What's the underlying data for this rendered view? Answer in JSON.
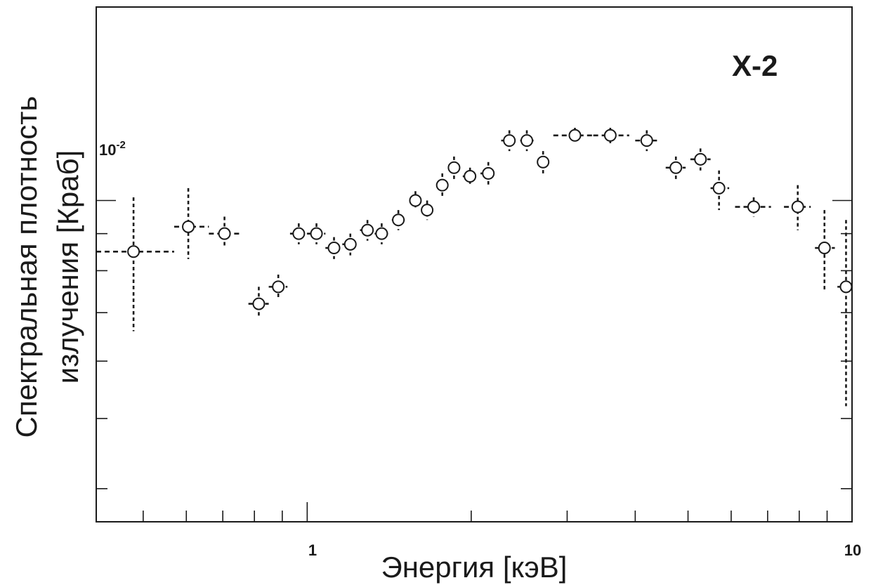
{
  "chart_data": {
    "type": "scatter",
    "title": "",
    "panel_label": "X-2",
    "xlabel": "Энергия [кэВ]",
    "ylabel_line1": "Спектральная плотность",
    "ylabel_line2": "излучения [Краб]",
    "xscale": "log",
    "yscale": "log",
    "xlim": [
      0.41,
      10.0
    ],
    "ylim": [
      0.0036,
      0.0185
    ],
    "x_ticks": [
      {
        "value": 1,
        "label": "1"
      },
      {
        "value": 10,
        "label": "10"
      }
    ],
    "y_ticks": [
      {
        "value": 0.01,
        "label_base": "10",
        "label_exp": "-2"
      }
    ],
    "grid": false,
    "legend": "none",
    "marker_color": "#1a1a1a",
    "series": [
      {
        "points": [
          {
            "x": 0.48,
            "x_lo": 0.41,
            "x_hi": 0.57,
            "y": 0.0085,
            "y_lo": 0.0066,
            "y_hi": 0.0101
          },
          {
            "x": 0.605,
            "x_lo": 0.57,
            "x_hi": 0.66,
            "y": 0.0092,
            "y_lo": 0.0083,
            "y_hi": 0.0104
          },
          {
            "x": 0.705,
            "x_lo": 0.66,
            "x_hi": 0.76,
            "y": 0.009,
            "y_lo": 0.0086,
            "y_hi": 0.0095
          },
          {
            "x": 0.815,
            "x_lo": 0.78,
            "x_hi": 0.85,
            "y": 0.0072,
            "y_lo": 0.0069,
            "y_hi": 0.0076
          },
          {
            "x": 0.885,
            "x_lo": 0.85,
            "x_hi": 0.92,
            "y": 0.0076,
            "y_lo": 0.0073,
            "y_hi": 0.0079
          },
          {
            "x": 0.965,
            "x_lo": 0.93,
            "x_hi": 1.0,
            "y": 0.009,
            "y_lo": 0.0087,
            "y_hi": 0.0093
          },
          {
            "x": 1.04,
            "x_lo": 1.0,
            "x_hi": 1.08,
            "y": 0.009,
            "y_lo": 0.0087,
            "y_hi": 0.0093
          },
          {
            "x": 1.12,
            "x_lo": 1.08,
            "x_hi": 1.16,
            "y": 0.0086,
            "y_lo": 0.0083,
            "y_hi": 0.0089
          },
          {
            "x": 1.2,
            "x_lo": 1.16,
            "x_hi": 1.24,
            "y": 0.0087,
            "y_lo": 0.0084,
            "y_hi": 0.009
          },
          {
            "x": 1.29,
            "x_lo": 1.25,
            "x_hi": 1.34,
            "y": 0.0091,
            "y_lo": 0.0088,
            "y_hi": 0.0094
          },
          {
            "x": 1.37,
            "x_lo": 1.33,
            "x_hi": 1.41,
            "y": 0.009,
            "y_lo": 0.0087,
            "y_hi": 0.0093
          },
          {
            "x": 1.47,
            "x_lo": 1.43,
            "x_hi": 1.51,
            "y": 0.0094,
            "y_lo": 0.0091,
            "y_hi": 0.0097
          },
          {
            "x": 1.58,
            "x_lo": 1.54,
            "x_hi": 1.62,
            "y": 0.01,
            "y_lo": 0.0097,
            "y_hi": 0.0103
          },
          {
            "x": 1.66,
            "x_lo": 1.62,
            "x_hi": 1.7,
            "y": 0.0097,
            "y_lo": 0.0094,
            "y_hi": 0.01
          },
          {
            "x": 1.77,
            "x_lo": 1.73,
            "x_hi": 1.81,
            "y": 0.0105,
            "y_lo": 0.0101,
            "y_hi": 0.0109
          },
          {
            "x": 1.86,
            "x_lo": 1.82,
            "x_hi": 1.9,
            "y": 0.0111,
            "y_lo": 0.0107,
            "y_hi": 0.0115
          },
          {
            "x": 1.99,
            "x_lo": 1.93,
            "x_hi": 2.06,
            "y": 0.0108,
            "y_lo": 0.0105,
            "y_hi": 0.0111
          },
          {
            "x": 2.15,
            "x_lo": 2.08,
            "x_hi": 2.23,
            "y": 0.0109,
            "y_lo": 0.0105,
            "y_hi": 0.0113
          },
          {
            "x": 2.35,
            "x_lo": 2.27,
            "x_hi": 2.43,
            "y": 0.0121,
            "y_lo": 0.0117,
            "y_hi": 0.0125
          },
          {
            "x": 2.53,
            "x_lo": 2.46,
            "x_hi": 2.61,
            "y": 0.0121,
            "y_lo": 0.0117,
            "y_hi": 0.0125
          },
          {
            "x": 2.71,
            "x_lo": 2.65,
            "x_hi": 2.78,
            "y": 0.0113,
            "y_lo": 0.0109,
            "y_hi": 0.0117
          },
          {
            "x": 3.1,
            "x_lo": 2.83,
            "x_hi": 3.35,
            "y": 0.0123,
            "y_lo": 0.0121,
            "y_hi": 0.0126
          },
          {
            "x": 3.6,
            "x_lo": 3.35,
            "x_hi": 3.9,
            "y": 0.0123,
            "y_lo": 0.012,
            "y_hi": 0.0126
          },
          {
            "x": 4.2,
            "x_lo": 4.0,
            "x_hi": 4.4,
            "y": 0.0121,
            "y_lo": 0.0117,
            "y_hi": 0.0125
          },
          {
            "x": 4.75,
            "x_lo": 4.55,
            "x_hi": 4.95,
            "y": 0.0111,
            "y_lo": 0.0107,
            "y_hi": 0.0115
          },
          {
            "x": 5.27,
            "x_lo": 5.05,
            "x_hi": 5.5,
            "y": 0.0114,
            "y_lo": 0.011,
            "y_hi": 0.0118
          },
          {
            "x": 5.7,
            "x_lo": 5.5,
            "x_hi": 5.95,
            "y": 0.0104,
            "y_lo": 0.0097,
            "y_hi": 0.011
          },
          {
            "x": 6.6,
            "x_lo": 6.1,
            "x_hi": 7.1,
            "y": 0.0098,
            "y_lo": 0.0095,
            "y_hi": 0.0101
          },
          {
            "x": 7.95,
            "x_lo": 7.5,
            "x_hi": 8.4,
            "y": 0.0098,
            "y_lo": 0.0091,
            "y_hi": 0.0105
          },
          {
            "x": 8.9,
            "x_lo": 8.55,
            "x_hi": 9.3,
            "y": 0.0086,
            "y_lo": 0.0075,
            "y_hi": 0.0097
          },
          {
            "x": 9.75,
            "x_lo": 9.4,
            "x_hi": 10.0,
            "y": 0.0076,
            "y_lo": 0.0052,
            "y_hi": 0.0094
          }
        ]
      }
    ]
  }
}
